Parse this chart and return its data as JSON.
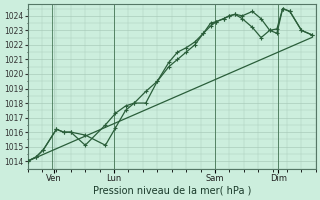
{
  "bg_color": "#cceedd",
  "grid_color": "#aaccbb",
  "line_color": "#2a5e3a",
  "xlabel": "Pression niveau de la mer( hPa )",
  "ylim": [
    1013.5,
    1024.8
  ],
  "yticks": [
    1014,
    1015,
    1016,
    1017,
    1018,
    1019,
    1020,
    1021,
    1022,
    1023,
    1024
  ],
  "xlim": [
    0,
    10.0
  ],
  "xtick_positions": [
    0.9,
    3.0,
    6.5,
    8.7
  ],
  "xtick_labels": [
    "Ven",
    "Lun",
    "Sam",
    "Dim"
  ],
  "vline_positions": [
    0.85,
    3.0,
    6.5,
    8.7
  ],
  "series1_x": [
    0.0,
    0.3,
    0.55,
    1.0,
    1.25,
    1.5,
    2.0,
    2.7,
    3.05,
    3.4,
    3.7,
    4.1,
    4.5,
    4.9,
    5.2,
    5.5,
    5.8,
    6.1,
    6.35,
    6.55,
    6.8,
    7.0,
    7.2,
    7.45,
    7.8,
    8.1,
    8.4,
    8.65,
    8.85,
    9.1,
    9.5,
    9.85
  ],
  "series1_y": [
    1014.0,
    1014.3,
    1014.8,
    1016.2,
    1016.0,
    1016.0,
    1015.8,
    1015.1,
    1016.3,
    1017.5,
    1018.0,
    1018.0,
    1019.5,
    1020.8,
    1021.5,
    1021.8,
    1022.2,
    1022.8,
    1023.5,
    1023.6,
    1023.8,
    1024.0,
    1024.1,
    1024.0,
    1024.3,
    1023.8,
    1023.0,
    1023.1,
    1024.5,
    1024.3,
    1023.0,
    1022.7
  ],
  "series2_x": [
    0.0,
    0.3,
    0.55,
    1.0,
    1.25,
    1.5,
    2.0,
    2.7,
    3.05,
    3.4,
    3.7,
    4.1,
    4.5,
    4.9,
    5.2,
    5.5,
    5.8,
    6.1,
    6.35,
    6.55,
    6.8,
    7.0,
    7.2,
    7.45,
    7.8,
    8.1,
    8.4,
    8.65,
    8.85,
    9.1,
    9.5,
    9.85
  ],
  "series2_y": [
    1014.0,
    1014.3,
    1014.8,
    1016.2,
    1016.0,
    1016.0,
    1015.1,
    1016.5,
    1017.3,
    1017.8,
    1018.0,
    1018.8,
    1019.5,
    1020.5,
    1021.0,
    1021.5,
    1022.0,
    1022.8,
    1023.3,
    1023.6,
    1023.8,
    1024.0,
    1024.1,
    1023.8,
    1023.2,
    1022.5,
    1023.0,
    1022.8,
    1024.5,
    1024.3,
    1023.0,
    1022.7
  ],
  "trend_x": [
    0.0,
    9.85
  ],
  "trend_y": [
    1014.0,
    1022.5
  ]
}
